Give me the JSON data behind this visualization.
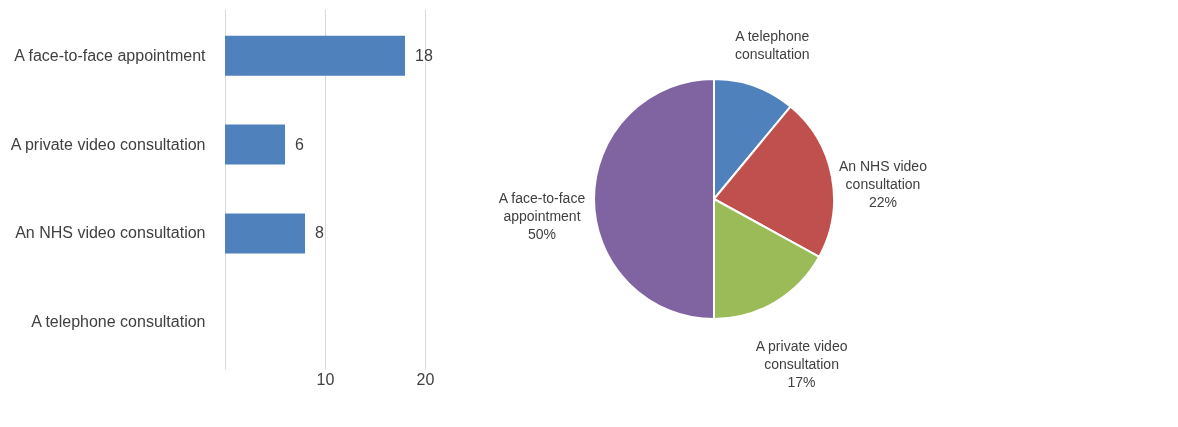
{
  "chart_data": [
    {
      "type": "bar",
      "orientation": "horizontal",
      "categories": [
        "A face-to-face appointment",
        "A private video consultation",
        "An NHS video consultation",
        "A telephone consultation"
      ],
      "values": [
        18,
        6,
        8,
        null
      ],
      "color": "#4f81bd",
      "data_labels": true,
      "xlim": [
        0,
        20
      ],
      "xticks": [
        {
          "value": 0,
          "label": null
        },
        10,
        20
      ],
      "grid": "x"
    },
    {
      "type": "pie",
      "categories": [
        "A telephone consultation",
        "An NHS video consultation",
        "A private video consultation",
        "A face-to-face appointment"
      ],
      "values": [
        11,
        22,
        17,
        50
      ],
      "colors": [
        "#4f81bd",
        "#c0504d",
        "#9bbb59",
        "#8064a2"
      ],
      "value_labels": [
        null,
        "22%",
        "17%",
        "50%"
      ],
      "legend": false
    }
  ]
}
